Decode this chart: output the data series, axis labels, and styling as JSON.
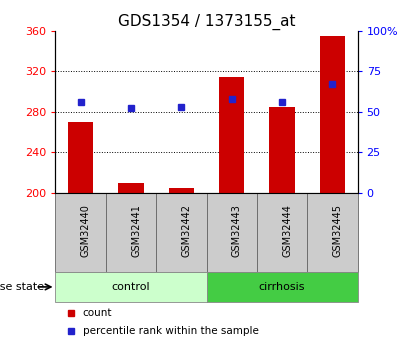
{
  "title": "GDS1354 / 1373155_at",
  "samples": [
    "GSM32440",
    "GSM32441",
    "GSM32442",
    "GSM32443",
    "GSM32444",
    "GSM32445"
  ],
  "bar_values": [
    270,
    210,
    205,
    315,
    285,
    355
  ],
  "bar_base": 200,
  "percentile_values": [
    290,
    284,
    285,
    293,
    290,
    308
  ],
  "ylim_left": [
    200,
    360
  ],
  "ylim_right": [
    0,
    100
  ],
  "yticks_left": [
    200,
    240,
    280,
    320,
    360
  ],
  "yticks_right": [
    0,
    25,
    50,
    75,
    100
  ],
  "ytick_labels_right": [
    "0",
    "25",
    "50",
    "75",
    "100%"
  ],
  "bar_color": "#cc0000",
  "dot_color": "#2222cc",
  "grid_yticks": [
    240,
    280,
    320
  ],
  "group_control_color": "#ccffcc",
  "group_cirrhosis_color": "#44cc44",
  "group_border_color": "#888888",
  "sample_box_color": "#cccccc",
  "legend_items": [
    {
      "label": "count",
      "color": "#cc0000"
    },
    {
      "label": "percentile rank within the sample",
      "color": "#2222cc"
    }
  ],
  "title_fontsize": 11,
  "tick_fontsize": 8,
  "bar_width": 0.5
}
